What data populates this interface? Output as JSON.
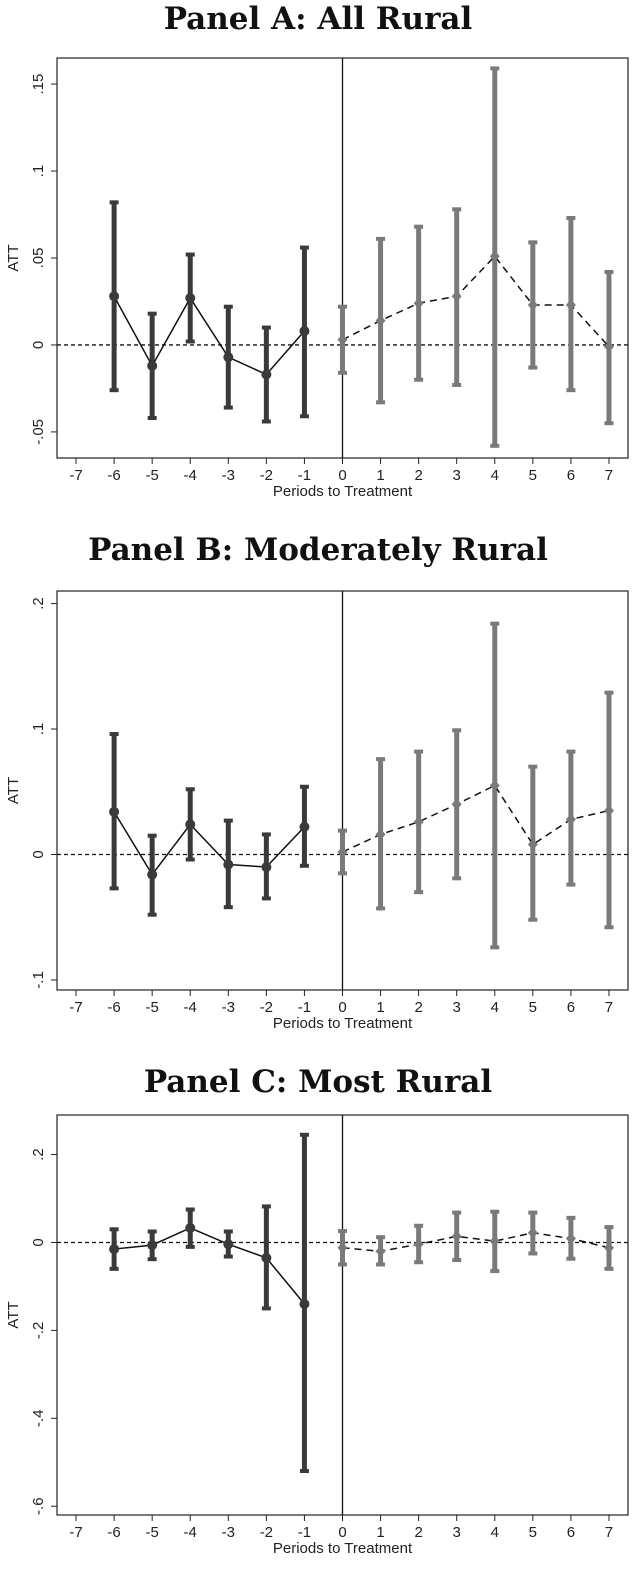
{
  "chart_data": [
    {
      "type": "line",
      "title": "Panel A: All Rural",
      "xlabel": "Periods to Treatment",
      "ylabel": "ATT",
      "xlim": [
        -7.5,
        7.5
      ],
      "ylim": [
        -0.065,
        0.165
      ],
      "xticks": [
        -7,
        -6,
        -5,
        -4,
        -3,
        -2,
        -1,
        0,
        1,
        2,
        3,
        4,
        5,
        6,
        7
      ],
      "yticks": [
        -0.05,
        0,
        0.05,
        0.1,
        0.15
      ],
      "ytick_labels": [
        "-.05",
        "0",
        ".05",
        ".1",
        ".15"
      ],
      "series": [
        {
          "style": "solid",
          "color": "#3a3a3a",
          "marker": "circle",
          "x": [
            -6,
            -5,
            -4,
            -3,
            -2,
            -1
          ],
          "y": [
            0.028,
            -0.012,
            0.027,
            -0.007,
            -0.017,
            0.008
          ],
          "ci_low": [
            -0.026,
            -0.042,
            0.002,
            -0.036,
            -0.044,
            -0.041
          ],
          "ci_high": [
            0.082,
            0.018,
            0.052,
            0.022,
            0.01,
            0.056
          ]
        },
        {
          "style": "dashed",
          "color": "#7a7a7a",
          "marker": "diamond",
          "x": [
            0,
            1,
            2,
            3,
            4,
            5,
            6,
            7
          ],
          "y": [
            0.003,
            0.014,
            0.024,
            0.028,
            0.051,
            0.023,
            0.023,
            -0.001
          ],
          "ci_low": [
            -0.016,
            -0.033,
            -0.02,
            -0.023,
            -0.058,
            -0.013,
            -0.026,
            -0.045
          ],
          "ci_high": [
            0.022,
            0.061,
            0.068,
            0.078,
            0.159,
            0.059,
            0.073,
            0.042
          ]
        }
      ],
      "reference_lines": {
        "y": 0,
        "x": 0
      }
    },
    {
      "type": "line",
      "title": "Panel B: Moderately Rural",
      "xlabel": "Periods to Treatment",
      "ylabel": "ATT",
      "xlim": [
        -7.5,
        7.5
      ],
      "ylim": [
        -0.108,
        0.21
      ],
      "xticks": [
        -7,
        -6,
        -5,
        -4,
        -3,
        -2,
        -1,
        0,
        1,
        2,
        3,
        4,
        5,
        6,
        7
      ],
      "yticks": [
        -0.1,
        0,
        0.1,
        0.2
      ],
      "ytick_labels": [
        "-.1",
        "0",
        ".1",
        ".2"
      ],
      "series": [
        {
          "style": "solid",
          "color": "#3a3a3a",
          "marker": "circle",
          "x": [
            -6,
            -5,
            -4,
            -3,
            -2,
            -1
          ],
          "y": [
            0.034,
            -0.016,
            0.024,
            -0.008,
            -0.01,
            0.022
          ],
          "ci_low": [
            -0.027,
            -0.048,
            -0.004,
            -0.042,
            -0.035,
            -0.009
          ],
          "ci_high": [
            0.096,
            0.015,
            0.052,
            0.027,
            0.016,
            0.054
          ]
        },
        {
          "style": "dashed",
          "color": "#7a7a7a",
          "marker": "diamond",
          "x": [
            0,
            1,
            2,
            3,
            4,
            5,
            6,
            7
          ],
          "y": [
            0.002,
            0.016,
            0.026,
            0.04,
            0.055,
            0.008,
            0.028,
            0.035
          ],
          "ci_low": [
            -0.015,
            -0.043,
            -0.03,
            -0.019,
            -0.074,
            -0.052,
            -0.024,
            -0.058
          ],
          "ci_high": [
            0.019,
            0.076,
            0.082,
            0.099,
            0.184,
            0.07,
            0.082,
            0.129
          ]
        }
      ],
      "reference_lines": {
        "y": 0,
        "x": 0
      }
    },
    {
      "type": "line",
      "title": "Panel C: Most Rural",
      "xlabel": "Periods to Treatment",
      "ylabel": "ATT",
      "xlim": [
        -7.5,
        7.5
      ],
      "ylim": [
        -0.62,
        0.29
      ],
      "xticks": [
        -7,
        -6,
        -5,
        -4,
        -3,
        -2,
        -1,
        0,
        1,
        2,
        3,
        4,
        5,
        6,
        7
      ],
      "yticks": [
        -0.6,
        -0.4,
        -0.2,
        0,
        0.2
      ],
      "ytick_labels": [
        "-.6",
        "-.4",
        "-.2",
        "0",
        ".2"
      ],
      "series": [
        {
          "style": "solid",
          "color": "#3a3a3a",
          "marker": "circle",
          "x": [
            -6,
            -5,
            -4,
            -3,
            -2,
            -1
          ],
          "y": [
            -0.015,
            -0.006,
            0.033,
            -0.004,
            -0.035,
            -0.14
          ],
          "ci_low": [
            -0.06,
            -0.038,
            -0.01,
            -0.032,
            -0.15,
            -0.52
          ],
          "ci_high": [
            0.03,
            0.025,
            0.075,
            0.025,
            0.082,
            0.245
          ]
        },
        {
          "style": "dashed",
          "color": "#7a7a7a",
          "marker": "diamond",
          "x": [
            0,
            1,
            2,
            3,
            4,
            5,
            6,
            7
          ],
          "y": [
            -0.012,
            -0.02,
            -0.004,
            0.014,
            0.003,
            0.022,
            0.009,
            -0.012
          ],
          "ci_low": [
            -0.05,
            -0.05,
            -0.045,
            -0.04,
            -0.065,
            -0.025,
            -0.037,
            -0.06
          ],
          "ci_high": [
            0.026,
            0.012,
            0.038,
            0.068,
            0.07,
            0.068,
            0.056,
            0.035
          ]
        }
      ],
      "reference_lines": {
        "y": 0,
        "x": 0
      }
    }
  ]
}
